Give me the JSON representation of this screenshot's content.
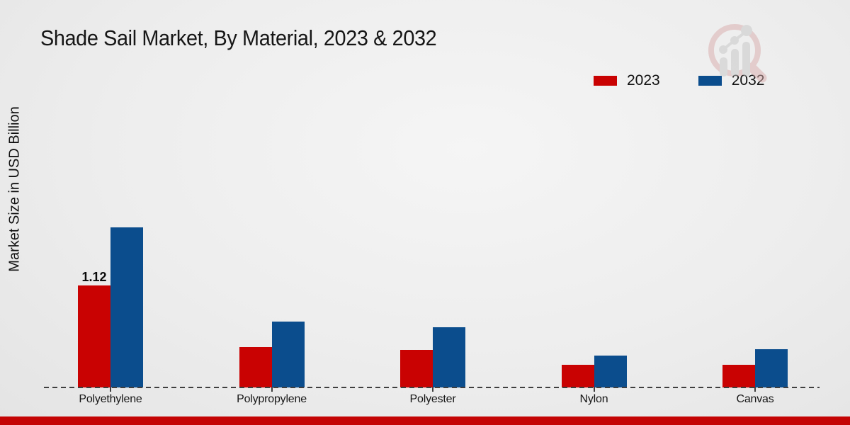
{
  "page": {
    "title": "Shade Sail Market, By Material, 2023 & 2032"
  },
  "axis": {
    "y_label": "Market Size in USD Billion"
  },
  "legend": {
    "items": [
      {
        "label": "2023",
        "color": "#c90202"
      },
      {
        "label": "2032",
        "color": "#0b4d8d"
      }
    ]
  },
  "watermark": {
    "icon": "magnifier-bar-chart-logo"
  },
  "colors": {
    "series_2023": "#c90202",
    "series_2032": "#0b4d8d",
    "footer_strip": "#c40404",
    "baseline_dash": "#3f3f3f"
  },
  "chart_data": {
    "type": "bar",
    "title": "Shade Sail Market, By Material, 2023 & 2032",
    "ylabel": "Market Size in USD Billion",
    "xlabel": "",
    "categories": [
      "Polyethylene",
      "Polypropylene",
      "Polyester",
      "Nylon",
      "Canvas"
    ],
    "series": [
      {
        "name": "2023",
        "color": "#c90202",
        "values": [
          1.12,
          0.44,
          0.41,
          0.25,
          0.25
        ]
      },
      {
        "name": "2032",
        "color": "#0b4d8d",
        "values": [
          1.76,
          0.72,
          0.66,
          0.35,
          0.42
        ]
      }
    ],
    "value_labels": [
      {
        "category": "Polyethylene",
        "series": "2023",
        "text": "1.12"
      }
    ],
    "ylim": [
      0,
      2
    ],
    "grid": false,
    "y_axis_ticks_visible": false,
    "baseline_style": "dashed",
    "legend_position": "top-right"
  }
}
